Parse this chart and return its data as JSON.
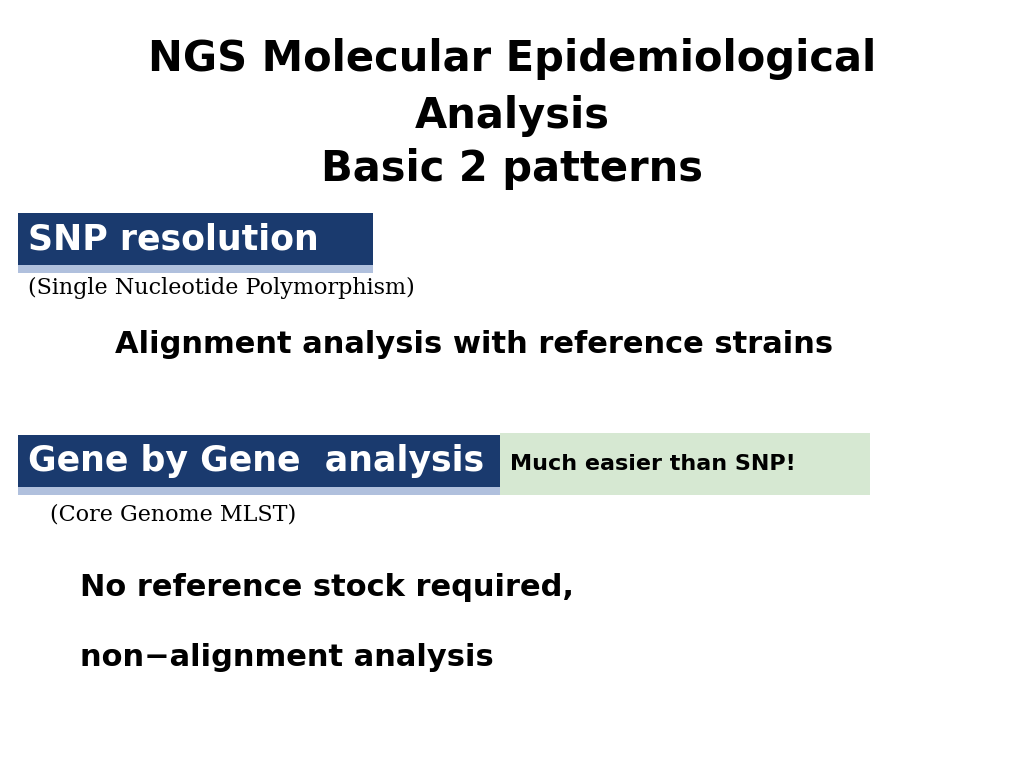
{
  "title_line1": "NGS Molecular Epidemiological",
  "title_line2": "Analysis",
  "title_line3": "Basic 2 patterns",
  "snp_label": "SNP resolution",
  "snp_sub": "(Single Nucleotide Polymorphism)",
  "snp_desc": "Alignment analysis with reference strains",
  "gene_label": "Gene by Gene  analysis",
  "gene_badge": "Much easier than SNP!",
  "gene_sub": "(Core Genome MLST)",
  "gene_desc1": "No reference stock required,",
  "gene_desc2": "non−alignment analysis",
  "bg_color": "#ffffff",
  "title_color": "#000000",
  "snp_box_color": "#1a3a6e",
  "snp_box_underline": "#b0c0dd",
  "snp_text_color": "#ffffff",
  "snp_sub_color": "#000000",
  "snp_desc_color": "#000000",
  "gene_box_color": "#1a3a6e",
  "gene_box_underline": "#b0c0dd",
  "gene_text_color": "#ffffff",
  "gene_badge_bg": "#d6e8d2",
  "gene_badge_color": "#000000",
  "gene_sub_color": "#000000",
  "gene_desc_color": "#000000",
  "fig_w": 10.24,
  "fig_h": 7.82,
  "dpi": 100
}
